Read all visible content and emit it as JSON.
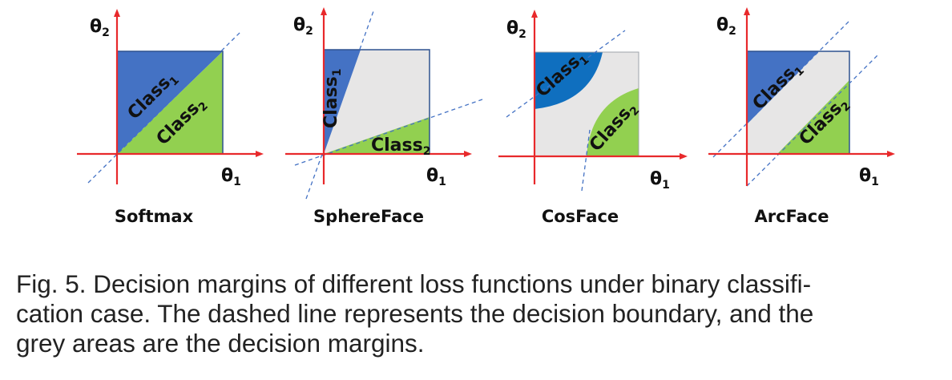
{
  "figure": {
    "axis": {
      "y_main": "θ",
      "y_sub": "2",
      "x_main": "θ",
      "x_sub": "1"
    },
    "classes": {
      "c1_main": "Class",
      "c1_sub": "1",
      "c2_main": "Class",
      "c2_sub": "2"
    },
    "panels": [
      {
        "name": "Softmax"
      },
      {
        "name": "SphereFace"
      },
      {
        "name": "CosFace"
      },
      {
        "name": "ArcFace"
      }
    ],
    "colors": {
      "class1": "#4472C4",
      "class1_cosface": "#0F6FBF",
      "class2": "#92D050",
      "margin": "#E7E6E6",
      "axes": "#E8292B",
      "boundary": "#4472C4"
    }
  },
  "caption": {
    "line1": "Fig. 5.  Decision margins of different loss functions under binary classifi-",
    "line2": "cation case. The dashed line represents the decision boundary, and the",
    "line3": "grey areas are the decision margins."
  }
}
